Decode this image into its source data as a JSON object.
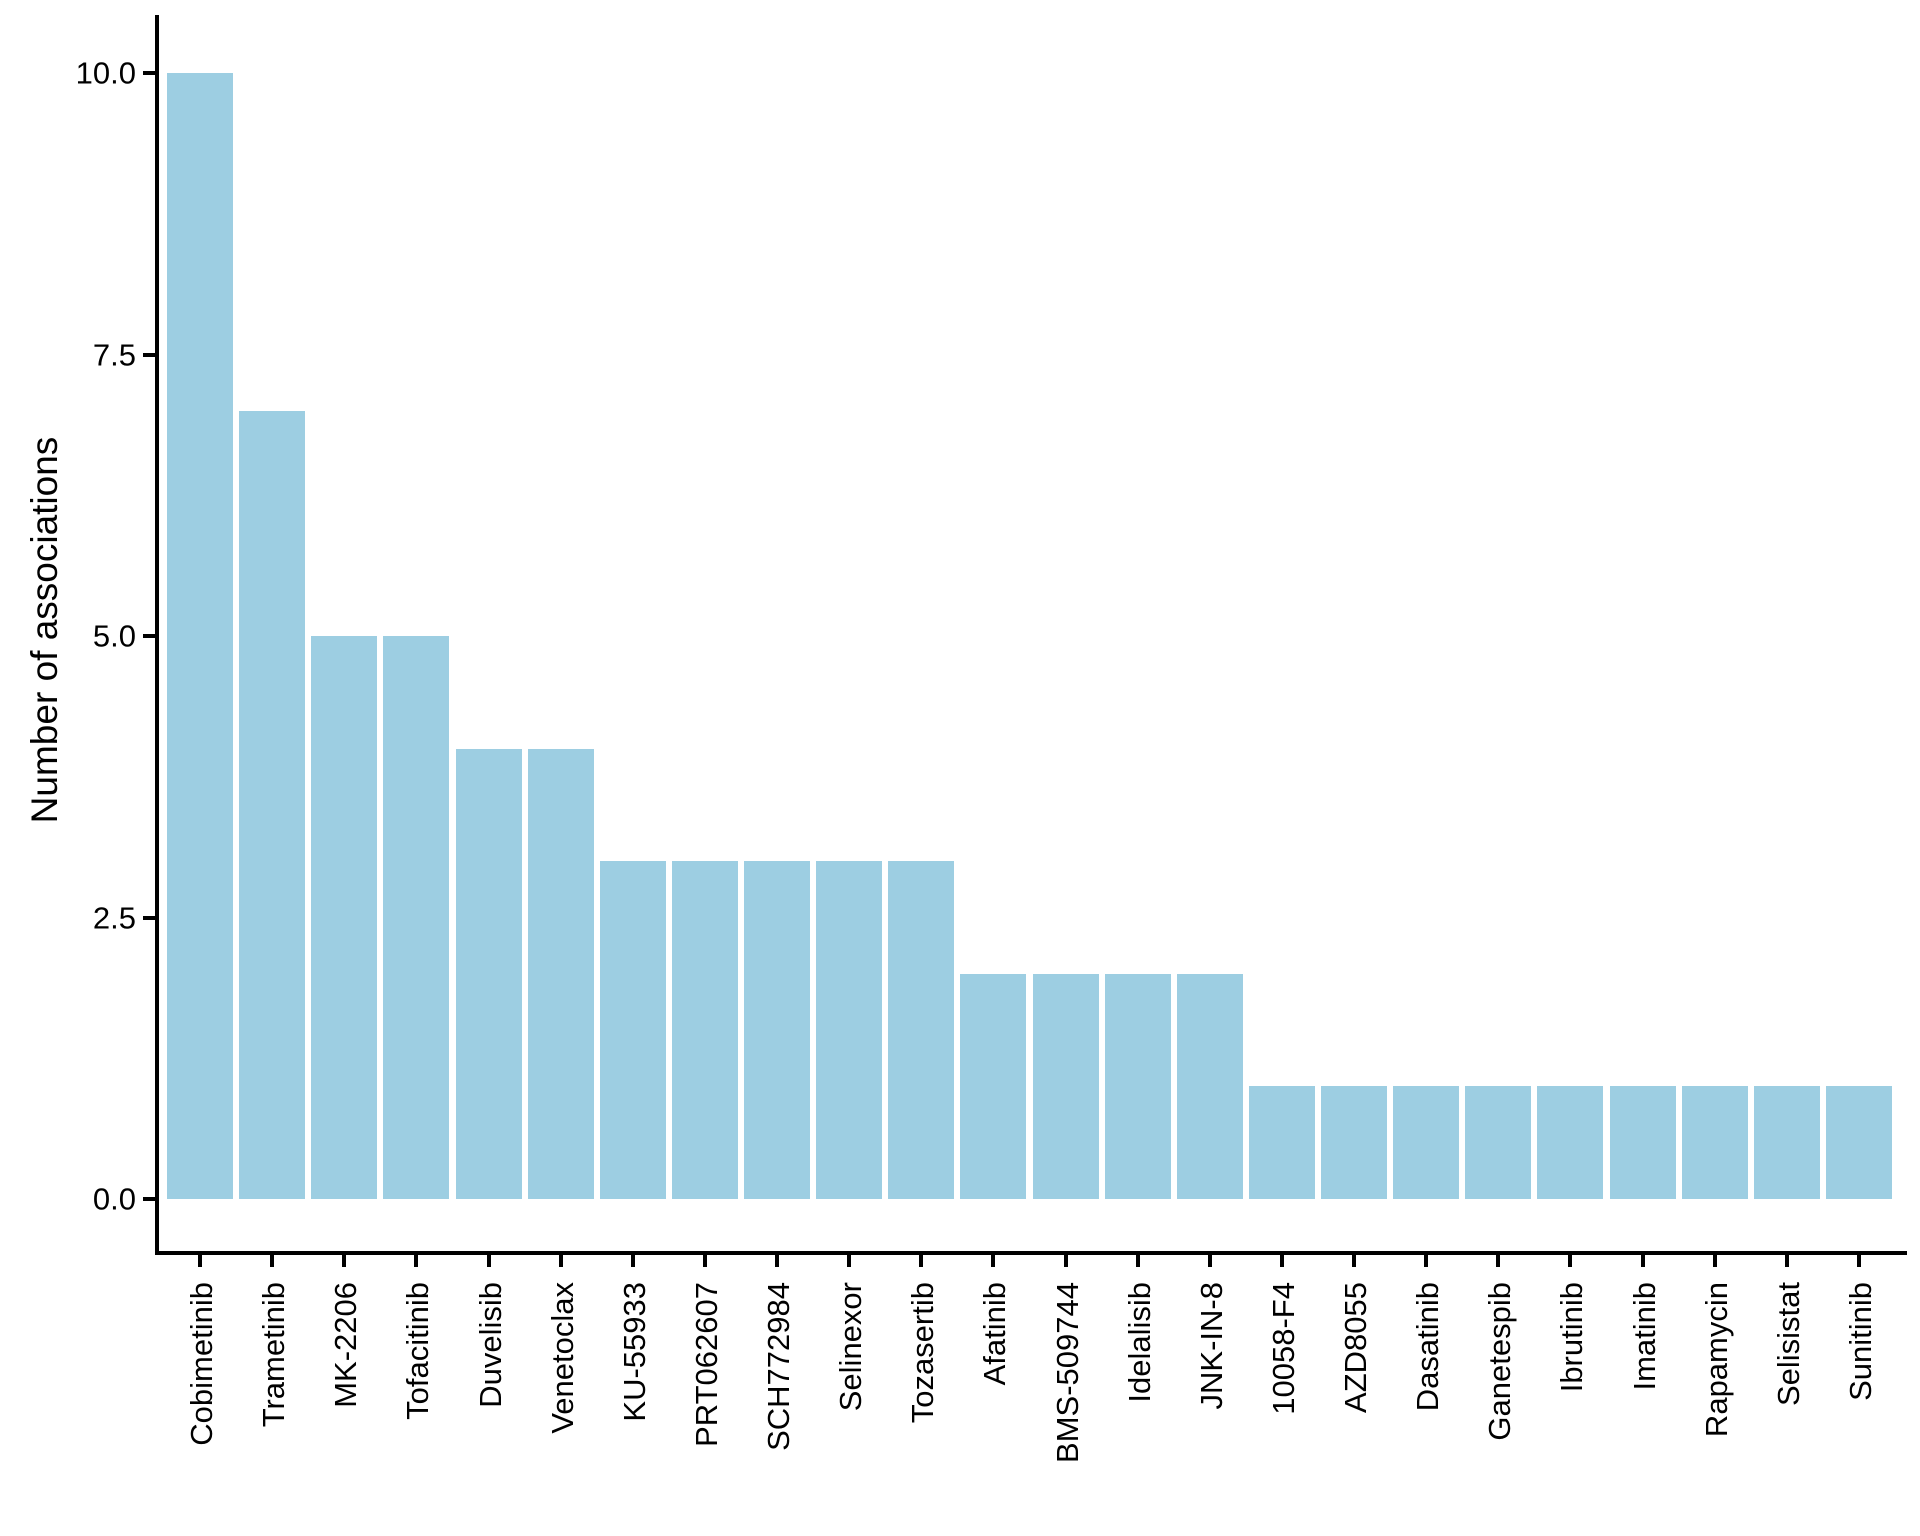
{
  "chart_data": {
    "type": "bar",
    "title": "",
    "xlabel": "",
    "ylabel": "Number of associations",
    "categories": [
      "Cobimetinib",
      "Trametinib",
      "MK-2206",
      "Tofacitinib",
      "Duvelisib",
      "Venetoclax",
      "KU-55933",
      "PRT062607",
      "SCH772984",
      "Selinexor",
      "Tozasertib",
      "Afatinib",
      "BMS-509744",
      "Idelalisib",
      "JNK-IN-8",
      "10058-F4",
      "AZD8055",
      "Dasatinib",
      "Ganetespib",
      "Ibrutinib",
      "Imatinib",
      "Rapamycin",
      "Selisistat",
      "Sunitinib"
    ],
    "values": [
      10,
      7,
      5,
      5,
      4,
      4,
      3,
      3,
      3,
      3,
      3,
      2,
      2,
      2,
      2,
      1,
      1,
      1,
      1,
      1,
      1,
      1,
      1,
      1
    ],
    "y_ticks": [
      {
        "value": 0,
        "label": "0.0"
      },
      {
        "value": 2.5,
        "label": "2.5"
      },
      {
        "value": 5,
        "label": "5.0"
      },
      {
        "value": 7.5,
        "label": "7.5"
      },
      {
        "value": 10,
        "label": "10.0"
      }
    ],
    "ylim": [
      0,
      10
    ],
    "grid": "off",
    "legend": "none",
    "bar_color": "#9DCEE2",
    "axis_color": "#000000",
    "text_color": "#000000",
    "background_color": "#FFFFFF"
  }
}
